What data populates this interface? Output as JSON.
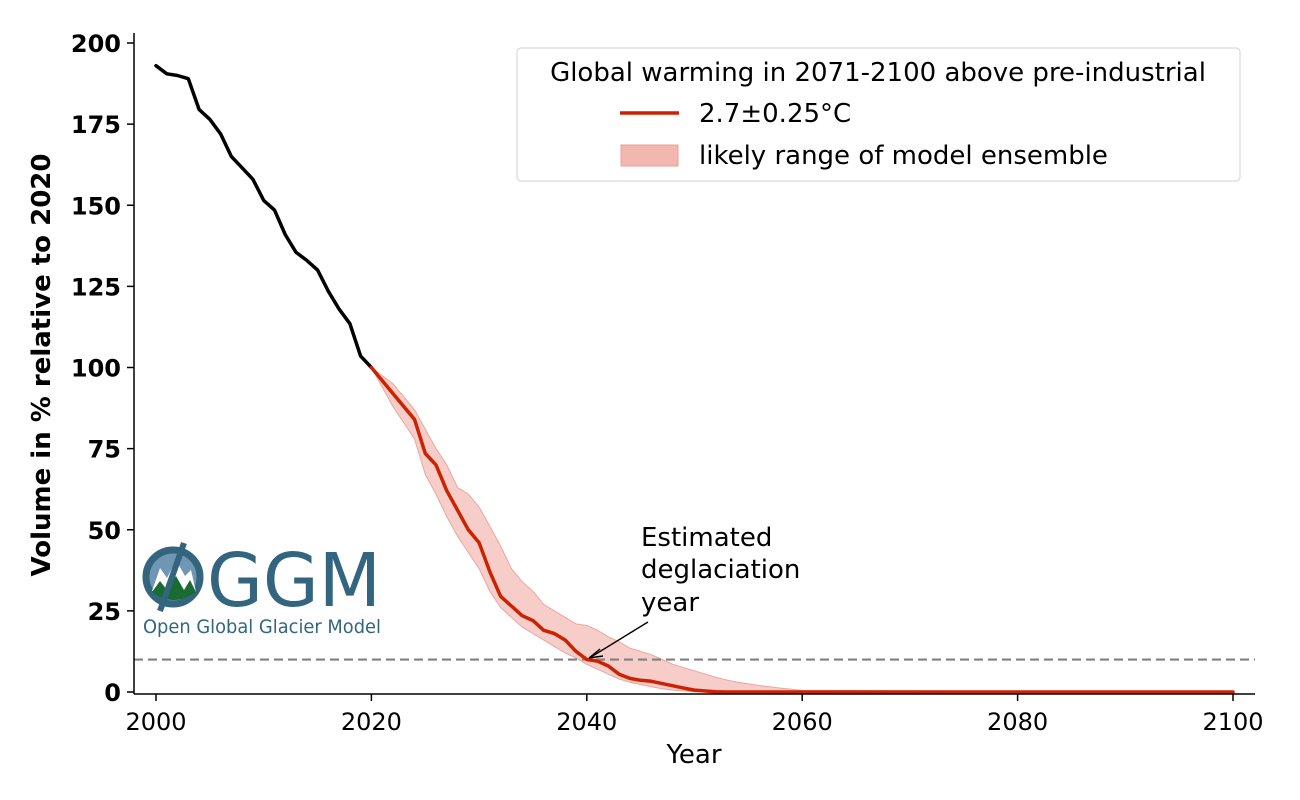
{
  "chart_data": {
    "type": "line",
    "xlabel": "Year",
    "ylabel": "Volume in % relative to 2020",
    "xlim": [
      1998,
      2103
    ],
    "ylim": [
      -1,
      203
    ],
    "xticks": [
      "2000",
      "2020",
      "2040",
      "2060",
      "2080",
      "2100"
    ],
    "yticks": [
      "0",
      "25",
      "50",
      "75",
      "100",
      "125",
      "150",
      "175",
      "200"
    ],
    "grid": false,
    "legend": {
      "placement": "top-right",
      "title": "Global warming in 2071-2100 above pre-industrial",
      "entries": [
        "2.7±0.25°C",
        "likely range of model ensemble"
      ]
    },
    "threshold_line": {
      "y": 10,
      "style": "dashed",
      "color": "#808080"
    },
    "annotation": {
      "lines": [
        "Estimated",
        "deglaciation",
        "year"
      ],
      "points_to": {
        "x": 2040,
        "y": 10
      }
    },
    "series": [
      {
        "role": "historical",
        "color": "#000000",
        "x": [
          2000,
          2001,
          2002,
          2003,
          2004,
          2005,
          2006,
          2007,
          2008,
          2009,
          2010,
          2011,
          2012,
          2013,
          2014,
          2015,
          2016,
          2017,
          2018,
          2019,
          2020
        ],
        "y": [
          193,
          190.5,
          190,
          189,
          179.5,
          176.5,
          172,
          165,
          161.5,
          158,
          151.5,
          148.5,
          141,
          135.5,
          133,
          130,
          123.5,
          118,
          113.5,
          103.5,
          100
        ]
      },
      {
        "name": "2.7±0.25°C",
        "role": "projection",
        "color": "#cc2200",
        "x": [
          2020,
          2022,
          2024,
          2025,
          2026,
          2027,
          2028,
          2029,
          2030,
          2031,
          2032,
          2033,
          2034,
          2035,
          2036,
          2037,
          2038,
          2039,
          2040,
          2041,
          2042,
          2043,
          2044,
          2045,
          2046,
          2047,
          2048,
          2049,
          2050,
          2051,
          2052,
          2053,
          2054,
          2056,
          2060,
          2070,
          2080,
          2090,
          2100
        ],
        "y": [
          100,
          92,
          84,
          73.5,
          70,
          62,
          56,
          50,
          46,
          37,
          29.5,
          26.5,
          23.5,
          22,
          19,
          18,
          16,
          12.5,
          10,
          9.5,
          8,
          5.5,
          4.2,
          3.6,
          3.3,
          2.6,
          1.9,
          1.2,
          0.6,
          0.3,
          0.1,
          0,
          0,
          0,
          0,
          0,
          0,
          0,
          0
        ]
      }
    ],
    "band": {
      "name": "likely range of model ensemble",
      "color": "#f2b8b0",
      "x": [
        2020,
        2022,
        2024,
        2025,
        2026,
        2027,
        2028,
        2029,
        2030,
        2031,
        2032,
        2033,
        2034,
        2035,
        2036,
        2037,
        2038,
        2039,
        2040,
        2041,
        2042,
        2043,
        2044,
        2045,
        2046,
        2047,
        2048,
        2049,
        2050,
        2051,
        2052,
        2053,
        2054,
        2056,
        2058,
        2060,
        2100
      ],
      "lower": [
        100,
        88,
        78,
        67,
        61,
        54,
        48,
        43,
        38,
        31,
        26,
        23,
        20,
        18,
        16,
        14,
        12,
        10.5,
        8.5,
        7,
        5.5,
        4,
        3,
        2.3,
        1.6,
        1,
        0.6,
        0.3,
        0.1,
        0,
        0,
        0,
        0,
        0,
        0,
        0,
        0
      ],
      "upper": [
        100,
        95,
        87,
        81,
        75,
        70,
        63,
        61,
        57,
        51,
        45,
        38,
        34,
        31,
        27,
        25,
        23,
        21,
        20.5,
        19,
        17,
        15.5,
        13.5,
        12.5,
        11.5,
        10,
        8.5,
        7.5,
        6.5,
        5.5,
        4.5,
        3.7,
        3,
        2,
        1.2,
        0.5,
        0
      ]
    }
  },
  "logo": {
    "big_text": "GGM",
    "small_text": "Open Global Glacier Model",
    "color": "#33657f"
  }
}
